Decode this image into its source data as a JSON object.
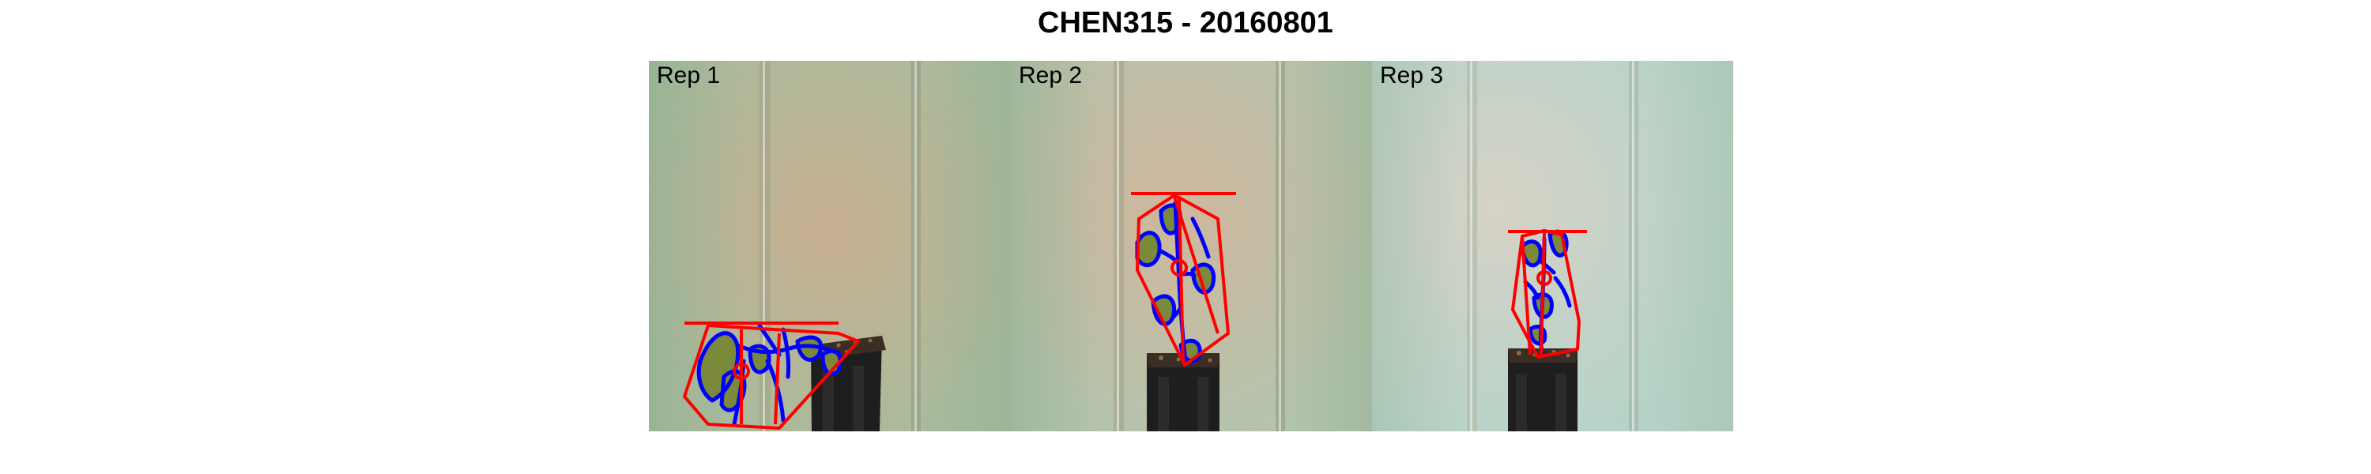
{
  "figure": {
    "title": "CHEN315 - 20160801"
  },
  "panels": [
    {
      "label": "Rep 1"
    },
    {
      "label": "Rep 2"
    },
    {
      "label": "Rep 3"
    }
  ],
  "colors": {
    "hull_outline": "#ff0000",
    "leaf_contour": "#0000ff",
    "foliage": "#7a8a3a",
    "pot": "#1e1e1e",
    "background_rep1": "#b8b394",
    "background_rep2": "#bfb59a",
    "background_rep3": "#c6d4c6"
  }
}
